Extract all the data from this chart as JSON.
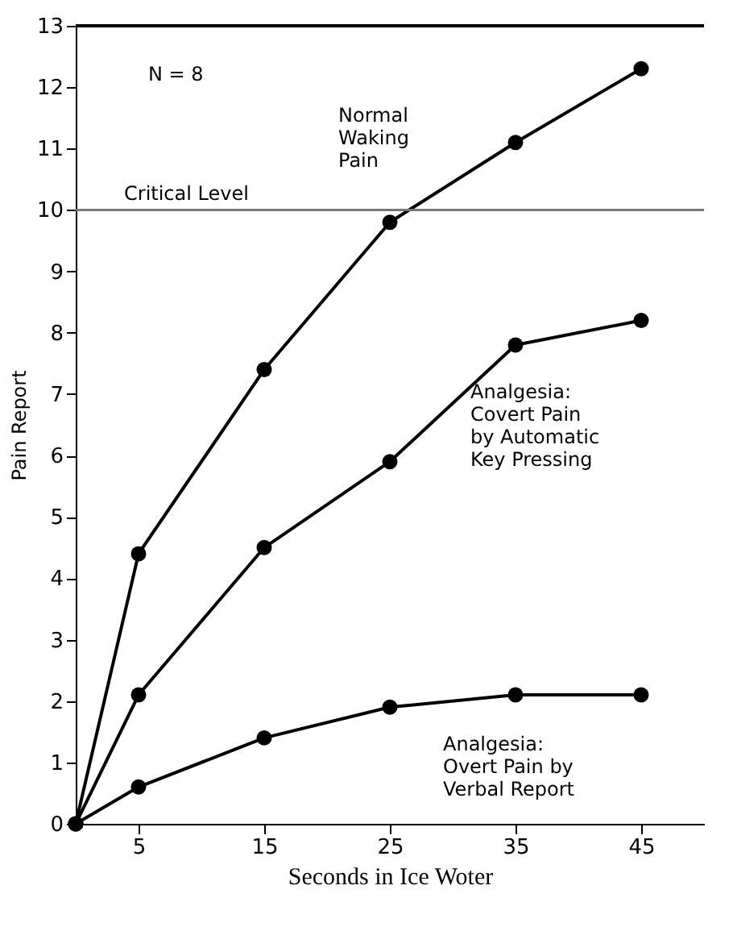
{
  "chart_data": {
    "type": "line",
    "xlabel": "Seconds in Ice Woter",
    "ylabel": "Pain Report",
    "x": [
      0,
      5,
      15,
      25,
      35,
      45
    ],
    "series": [
      {
        "name": "Normal\nWaking\nPain",
        "color": "#000000",
        "values": [
          0,
          4.4,
          7.4,
          9.8,
          11.1,
          12.3
        ]
      },
      {
        "name": "Analgesia:\nCovert Pain\nby Automatic\nKey Pressing",
        "color": "#000000",
        "values": [
          0,
          2.1,
          4.5,
          5.9,
          7.8,
          8.2
        ]
      },
      {
        "name": "Analgesia:\nOvert Pain by\nVerbal Report",
        "color": "#000000",
        "values": [
          0,
          0.6,
          1.4,
          1.9,
          2.1,
          2.1
        ]
      }
    ],
    "xlim": [
      0,
      50
    ],
    "xticks": [
      5,
      15,
      25,
      35,
      45
    ],
    "ylim": [
      0,
      13
    ],
    "yticks": [
      0,
      1,
      2,
      3,
      4,
      5,
      6,
      7,
      8,
      9,
      10,
      11,
      12,
      13
    ],
    "ref_lines": [
      {
        "axis": "y",
        "value": 10,
        "label": "Critical Level",
        "color": "#777777"
      }
    ],
    "annotations": [
      "N = 8"
    ],
    "marker": "circle",
    "line_style": "solid",
    "grid": false,
    "legend": false
  }
}
